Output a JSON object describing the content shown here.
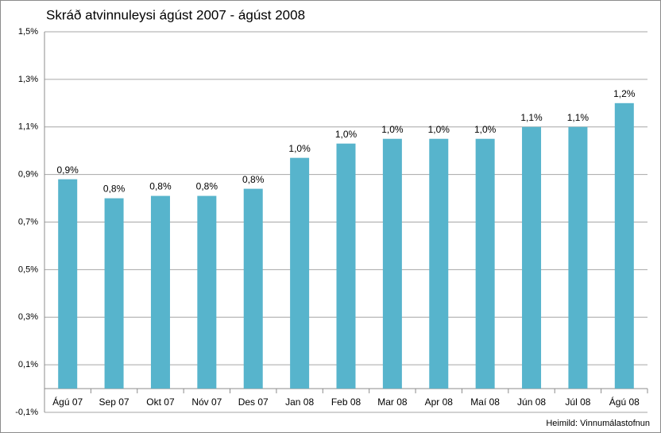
{
  "chart_data": {
    "type": "bar",
    "title": "Skráð atvinnuleysi ágúst 2007 - ágúst 2008",
    "categories": [
      "Ágú 07",
      "Sep 07",
      "Okt 07",
      "Nóv 07",
      "Des 07",
      "Jan 08",
      "Feb 08",
      "Mar 08",
      "Apr 08",
      "Maí 08",
      "Jún 08",
      "Júl 08",
      "Ágú 08"
    ],
    "values": [
      0.88,
      0.8,
      0.81,
      0.81,
      0.84,
      0.97,
      1.03,
      1.05,
      1.05,
      1.05,
      1.1,
      1.1,
      1.2
    ],
    "value_labels": [
      "0,9%",
      "0,8%",
      "0,8%",
      "0,8%",
      "0,8%",
      "1,0%",
      "1,0%",
      "1,0%",
      "1,0%",
      "1,0%",
      "1,1%",
      "1,1%",
      "1,2%"
    ],
    "color": "#57b4cc",
    "ylim": [
      -0.1,
      1.5
    ],
    "yticks": [
      {
        "value": -0.1,
        "label": "-0,1%"
      },
      {
        "value": 0.1,
        "label": "0,1%"
      },
      {
        "value": 0.3,
        "label": "0,3%"
      },
      {
        "value": 0.5,
        "label": "0,5%"
      },
      {
        "value": 0.7,
        "label": "0,7%"
      },
      {
        "value": 0.9,
        "label": "0,9%"
      },
      {
        "value": 1.1,
        "label": "1,1%"
      },
      {
        "value": 1.3,
        "label": "1,3%"
      },
      {
        "value": 1.5,
        "label": "1,5%"
      }
    ],
    "grid": true,
    "source": "Heimild: Vinnumálastofnun"
  }
}
